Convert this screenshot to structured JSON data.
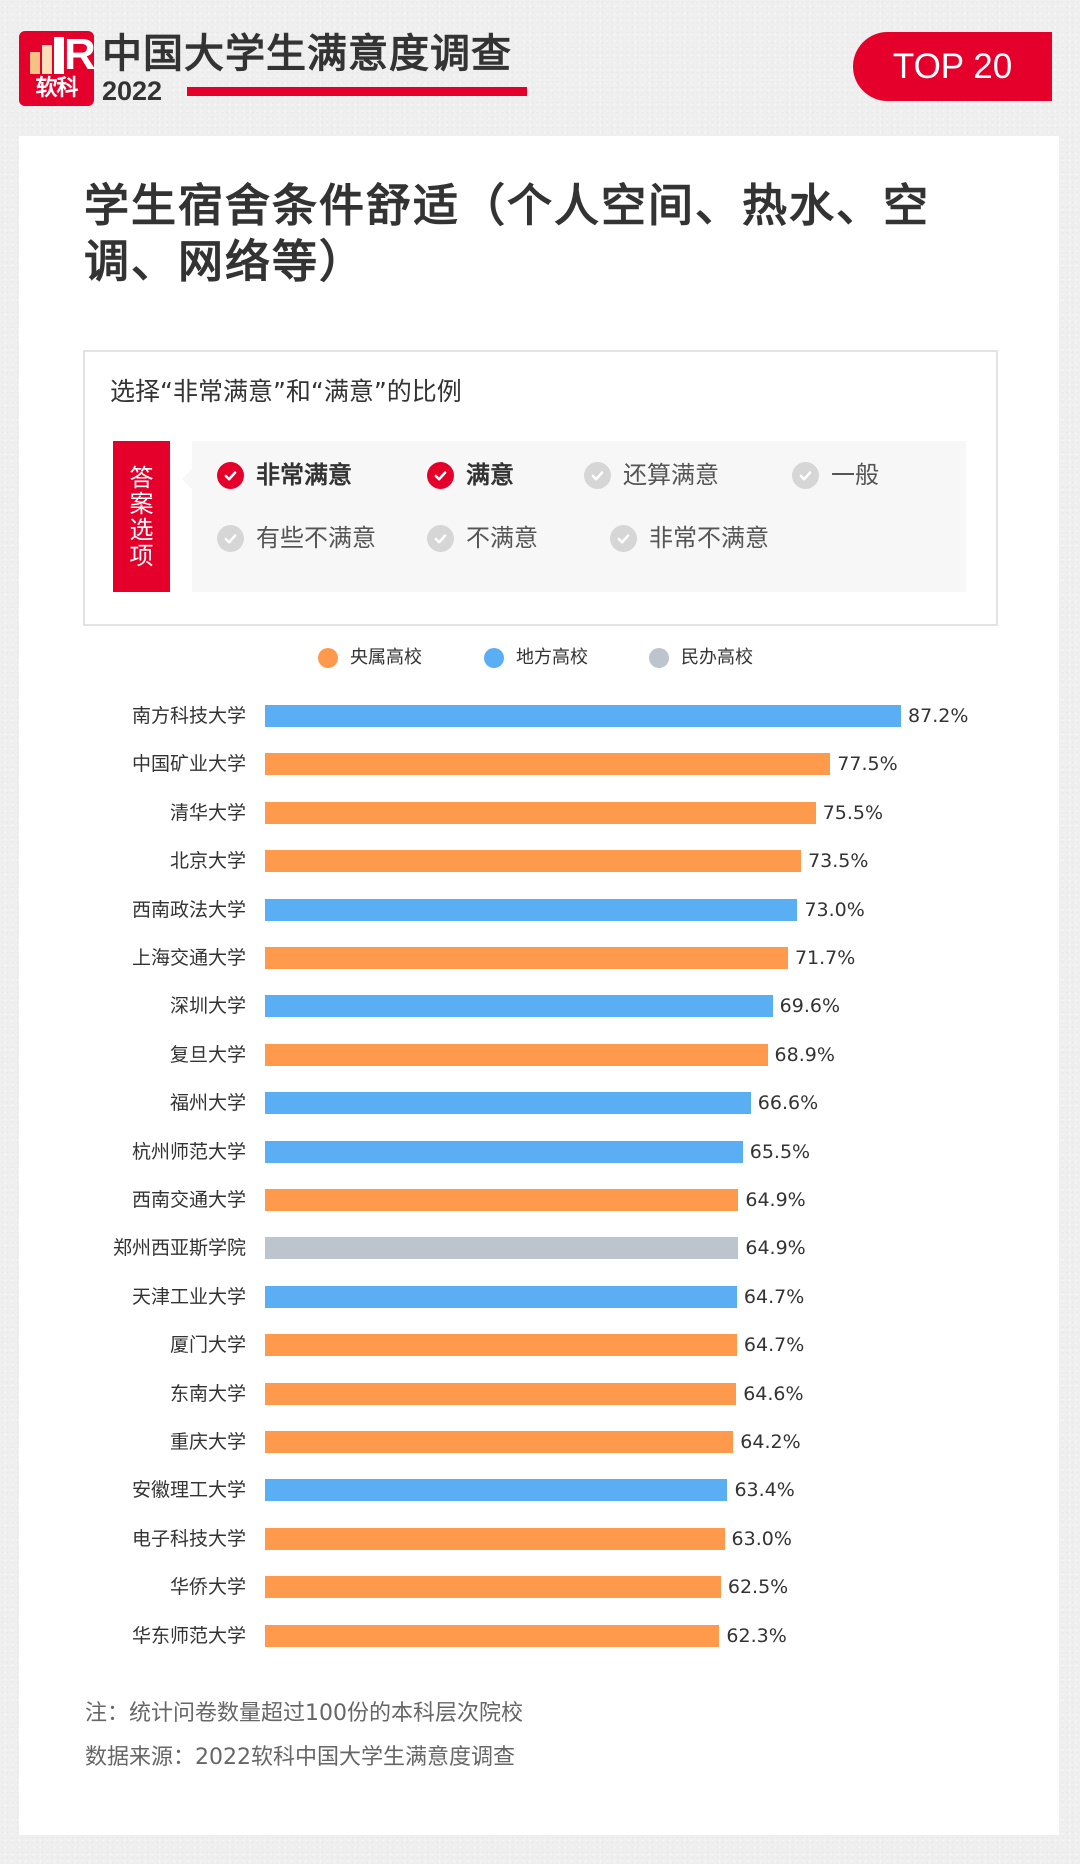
{
  "header": {
    "logo_text": "软科",
    "logo_letter": "R",
    "title": "中国大学生满意度调查",
    "year": "2022",
    "badge": "TOP 20"
  },
  "colors": {
    "brand_red": "#e4002b",
    "central": "#ff9a4d",
    "local": "#5aaef3",
    "private": "#bcc5cd"
  },
  "main": {
    "title": "学生宿舍条件舒适（个人空间、热水、空调、网络等）",
    "question": {
      "title": "选择“非常满意”和“满意”的比例",
      "tag": [
        "答",
        "案",
        "选",
        "项"
      ],
      "options": [
        {
          "label": "非常满意",
          "selected": true
        },
        {
          "label": "满意",
          "selected": true
        },
        {
          "label": "还算满意",
          "selected": false
        },
        {
          "label": "一般",
          "selected": false
        },
        {
          "label": "有些不满意",
          "selected": false
        },
        {
          "label": "不满意",
          "selected": false
        },
        {
          "label": "非常不满意",
          "selected": false
        }
      ]
    },
    "legend": [
      {
        "label": "央属高校",
        "color": "#ff9a4d"
      },
      {
        "label": "地方高校",
        "color": "#5aaef3"
      },
      {
        "label": "民办高校",
        "color": "#bcc5cd"
      }
    ],
    "notes": [
      "注：统计问卷数量超过100份的本科层次院校",
      "数据来源：2022软科中国大学生满意度调查"
    ]
  },
  "chart_data": {
    "type": "bar",
    "orientation": "horizontal",
    "title": "学生宿舍条件舒适（个人空间、热水、空调、网络等）",
    "subtitle": "选择“非常满意”和“满意”的比例",
    "legend_position": "top",
    "grid": false,
    "xlabel": "",
    "ylabel": "",
    "value_format": "percent",
    "legend": [
      "央属高校",
      "地方高校",
      "民办高校"
    ],
    "categories": [
      "南方科技大学",
      "中国矿业大学",
      "清华大学",
      "北京大学",
      "西南政法大学",
      "上海交通大学",
      "深圳大学",
      "复旦大学",
      "福州大学",
      "杭州师范大学",
      "西南交通大学",
      "郑州西亚斯学院",
      "天津工业大学",
      "厦门大学",
      "东南大学",
      "重庆大学",
      "安徽理工大学",
      "电子科技大学",
      "华侨大学",
      "华东师范大学"
    ],
    "values": [
      87.2,
      77.5,
      75.5,
      73.5,
      73.0,
      71.7,
      69.6,
      68.9,
      66.6,
      65.5,
      64.9,
      64.9,
      64.7,
      64.7,
      64.6,
      64.2,
      63.4,
      63.0,
      62.5,
      62.3
    ],
    "labels": [
      "87.2%",
      "77.5%",
      "75.5%",
      "73.5%",
      "73.0%",
      "71.7%",
      "69.6%",
      "68.9%",
      "66.6%",
      "65.5%",
      "64.9%",
      "64.9%",
      "64.7%",
      "64.7%",
      "64.6%",
      "64.2%",
      "63.4%",
      "63.0%",
      "62.5%",
      "62.3%"
    ],
    "types": [
      "地方高校",
      "央属高校",
      "央属高校",
      "央属高校",
      "地方高校",
      "央属高校",
      "地方高校",
      "央属高校",
      "地方高校",
      "地方高校",
      "央属高校",
      "民办高校",
      "地方高校",
      "央属高校",
      "央属高校",
      "央属高校",
      "地方高校",
      "央属高校",
      "央属高校",
      "央属高校"
    ]
  }
}
